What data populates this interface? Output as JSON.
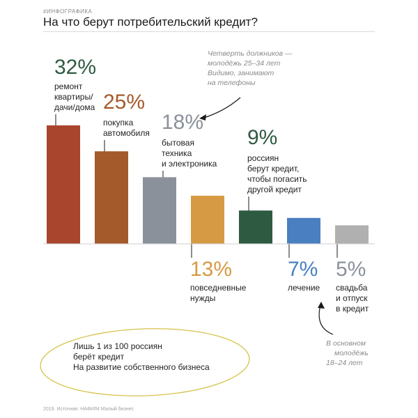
{
  "header": {
    "tag": "#ИНФОГРАФИКА",
    "title": "На что берут потребительский кредит?"
  },
  "colors": {
    "renovation": "#a8452c",
    "car": "#a45a2a",
    "electronics": "#8a919a",
    "everyday": "#d69a45",
    "refinance": "#2f5a42",
    "treatment": "#4a7fc2",
    "wedding": "#b0b0b0",
    "curve": "#d6c24a",
    "note": "#8a8a8a"
  },
  "chart_data": {
    "type": "bar",
    "categories": [
      "ремонт квартиры/ дачи/дома",
      "покупка автомобиля",
      "бытовая техника и электроника",
      "повседневные нужды",
      "россиян берут кредит, чтобы погасить другой кредит",
      "лечение",
      "свадьба и отпуск в кредит"
    ],
    "values": [
      32,
      25,
      18,
      13,
      9,
      7,
      5
    ],
    "value_labels": [
      "32%",
      "25%",
      "18%",
      "13%",
      "9%",
      "7%",
      "5%"
    ],
    "label_lines": [
      [
        "ремонт",
        "квартиры/",
        "дачи/дома"
      ],
      [
        "покупка",
        "автомобиля"
      ],
      [
        "бытовая",
        "техника",
        "и электроника"
      ],
      [
        "повседневные",
        "нужды"
      ],
      [
        "россиян",
        "берут кредит,",
        "чтобы погасить",
        "другой кредит"
      ],
      [
        "лечение"
      ],
      [
        "свадьба",
        "и отпуск",
        "в кредит"
      ]
    ],
    "ylim": [
      0,
      32
    ]
  },
  "notes": {
    "quarter": [
      "Четверть должников —",
      "молодёжь 25–34 лет",
      "Видимо, занимают",
      "на телефоны"
    ],
    "young": [
      "В основном",
      "молодёжь",
      "18–24 лет"
    ]
  },
  "callout": [
    "Лишь 1 из 100 россиян",
    "берёт кредит",
    "На развитие собственного бизнеса"
  ],
  "footer": "2019. Источник: НАФИ/М Малый бизнес"
}
